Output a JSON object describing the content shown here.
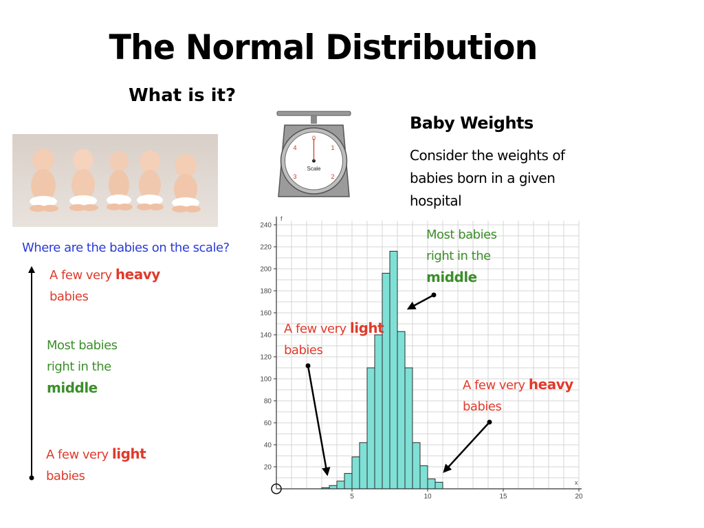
{
  "slide": {
    "title": "The Normal Distribution",
    "subtitle": "What is it?",
    "baby_weights_title": "Baby Weights",
    "baby_weights_desc": "Consider the weights of babies born in a given hospital"
  },
  "scale_icon": {
    "face_label": "Scale",
    "numbers": [
      "0",
      "1",
      "2",
      "3",
      "4"
    ]
  },
  "left_panel": {
    "question": "Where are the babies on the scale?",
    "heavy_prefix": "A few very ",
    "heavy_word": "heavy",
    "heavy_suffix": "babies",
    "middle_line1": "Most babies",
    "middle_line2": "right in the",
    "middle_word": "middle",
    "light_prefix": "A few very ",
    "light_word": "light",
    "light_suffix": "babies"
  },
  "annotations": {
    "middle_line1": "Most babies",
    "middle_line2": "right in the",
    "middle_word": "middle",
    "light_prefix": "A few very ",
    "light_word": "light",
    "light_suffix": "babies",
    "heavy_prefix": "A few very ",
    "heavy_word": "heavy",
    "heavy_suffix": "babies"
  },
  "colors": {
    "bar_fill": "#7fe0d6",
    "bar_stroke": "#2b2b2b",
    "grid": "#d4d4d4",
    "red": "#e03a2b",
    "green": "#3c8e2a",
    "blue": "#2a3bd6"
  },
  "chart_data": {
    "type": "bar",
    "ylabel": "f",
    "xlabel": "x",
    "xlim": [
      0,
      20
    ],
    "ylim": [
      0,
      240
    ],
    "x_ticks": [
      5,
      10,
      15,
      20
    ],
    "y_ticks": [
      20,
      40,
      60,
      80,
      100,
      120,
      140,
      160,
      180,
      200,
      220,
      240
    ],
    "bin_width": 0.5,
    "bins": [
      {
        "x": 3.0,
        "value": 1
      },
      {
        "x": 3.5,
        "value": 3
      },
      {
        "x": 4.0,
        "value": 7
      },
      {
        "x": 4.5,
        "value": 14
      },
      {
        "x": 5.0,
        "value": 29
      },
      {
        "x": 5.5,
        "value": 42
      },
      {
        "x": 6.0,
        "value": 110
      },
      {
        "x": 6.5,
        "value": 140
      },
      {
        "x": 7.0,
        "value": 196
      },
      {
        "x": 7.5,
        "value": 216
      },
      {
        "x": 8.0,
        "value": 143
      },
      {
        "x": 8.5,
        "value": 110
      },
      {
        "x": 9.0,
        "value": 42
      },
      {
        "x": 9.5,
        "value": 21
      },
      {
        "x": 10.0,
        "value": 9
      },
      {
        "x": 10.5,
        "value": 6
      }
    ],
    "grid": true
  }
}
